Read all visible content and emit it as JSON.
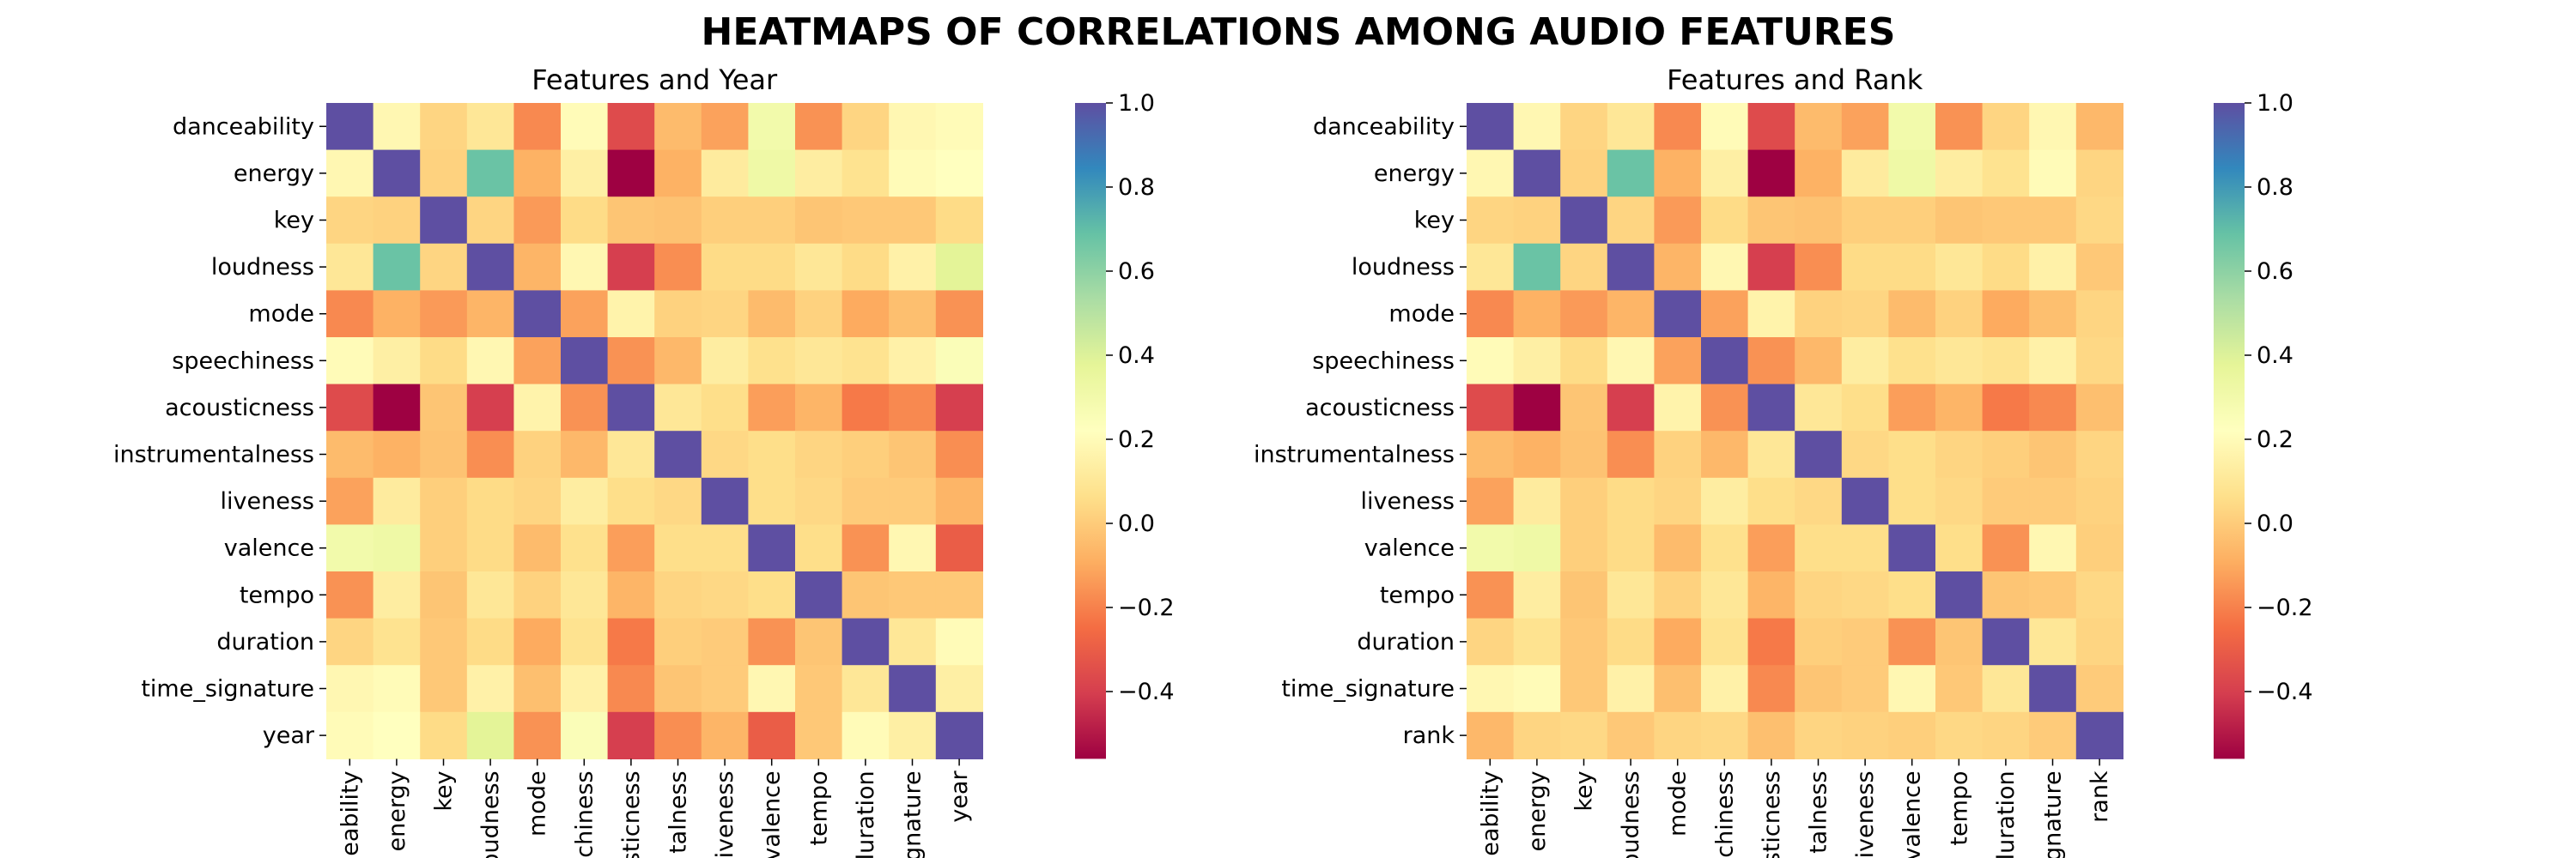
{
  "suptitle": "HEATMAPS OF CORRELATIONS AMONG AUDIO FEATURES",
  "colormap": {
    "name": "Spectral",
    "stops": [
      "#9e0142",
      "#d53e4f",
      "#f46d43",
      "#fdae61",
      "#fee08b",
      "#ffffbf",
      "#e6f598",
      "#abdda4",
      "#66c2a5",
      "#3288bd",
      "#5e4fa2"
    ]
  },
  "chart_data": [
    {
      "type": "heatmap",
      "title": "Features and Year",
      "vmin": -0.56,
      "vmax": 1.0,
      "colorbar_ticks": [
        "1.0",
        "0.8",
        "0.6",
        "0.4",
        "0.2",
        "0.0",
        "−0.2",
        "−0.4"
      ],
      "colorbar_tick_values": [
        1.0,
        0.8,
        0.6,
        0.4,
        0.2,
        0.0,
        -0.2,
        -0.4
      ],
      "row_labels": [
        "danceability",
        "energy",
        "key",
        "loudness",
        "mode",
        "speechiness",
        "acousticness",
        "instrumentalness",
        "liveness",
        "valence",
        "tempo",
        "duration",
        "time_signature",
        "year"
      ],
      "col_labels": [
        "eability",
        "energy",
        "key",
        "oudness",
        "mode",
        "chiness",
        "usticness",
        "talness",
        "iveness",
        "valence",
        "tempo",
        "luration",
        "gnature",
        "year"
      ],
      "values": [
        [
          1.0,
          0.18,
          0.03,
          0.1,
          -0.18,
          0.2,
          -0.36,
          -0.05,
          -0.12,
          0.3,
          -0.16,
          0.03,
          0.18,
          0.2
        ],
        [
          0.18,
          1.0,
          0.02,
          0.68,
          -0.08,
          0.14,
          -0.56,
          -0.08,
          0.12,
          0.32,
          0.13,
          0.08,
          0.2,
          0.22
        ],
        [
          0.03,
          0.02,
          1.0,
          0.03,
          -0.14,
          0.05,
          -0.02,
          -0.03,
          0.01,
          0.01,
          -0.02,
          -0.01,
          -0.01,
          0.05
        ],
        [
          0.1,
          0.68,
          0.03,
          1.0,
          -0.07,
          0.18,
          -0.4,
          -0.17,
          0.05,
          0.05,
          0.1,
          0.05,
          0.15,
          0.38
        ],
        [
          -0.18,
          -0.08,
          -0.14,
          -0.07,
          1.0,
          -0.12,
          0.16,
          0.02,
          0.03,
          -0.05,
          0.02,
          -0.1,
          -0.04,
          -0.16
        ],
        [
          0.2,
          0.14,
          0.05,
          0.18,
          -0.12,
          1.0,
          -0.16,
          -0.06,
          0.13,
          0.07,
          0.1,
          0.08,
          0.15,
          0.25
        ],
        [
          -0.36,
          -0.56,
          -0.02,
          -0.4,
          0.16,
          -0.16,
          1.0,
          0.1,
          0.06,
          -0.13,
          -0.07,
          -0.22,
          -0.18,
          -0.4
        ],
        [
          -0.05,
          -0.08,
          -0.03,
          -0.17,
          0.02,
          -0.06,
          0.1,
          1.0,
          0.04,
          0.06,
          0.03,
          0.01,
          -0.02,
          -0.17
        ],
        [
          -0.12,
          0.12,
          0.01,
          0.05,
          0.03,
          0.13,
          0.06,
          0.04,
          1.0,
          0.06,
          0.04,
          0.0,
          0.0,
          -0.07
        ],
        [
          0.3,
          0.32,
          0.01,
          0.05,
          -0.05,
          0.07,
          -0.13,
          0.06,
          0.06,
          1.0,
          0.06,
          -0.16,
          0.18,
          -0.3
        ],
        [
          -0.16,
          0.13,
          -0.02,
          0.1,
          0.02,
          0.1,
          -0.07,
          0.03,
          0.04,
          0.06,
          1.0,
          -0.02,
          -0.01,
          -0.01
        ],
        [
          0.03,
          0.08,
          -0.01,
          0.05,
          -0.1,
          0.08,
          -0.22,
          0.01,
          0.0,
          -0.16,
          -0.02,
          1.0,
          0.1,
          0.2
        ],
        [
          0.18,
          0.2,
          -0.01,
          0.15,
          -0.04,
          0.15,
          -0.18,
          -0.02,
          0.0,
          0.18,
          -0.01,
          0.1,
          1.0,
          0.14
        ],
        [
          0.2,
          0.22,
          0.05,
          0.38,
          -0.16,
          0.25,
          -0.4,
          -0.17,
          -0.07,
          -0.3,
          -0.01,
          0.2,
          0.14,
          1.0
        ]
      ]
    },
    {
      "type": "heatmap",
      "title": "Features and Rank",
      "vmin": -0.56,
      "vmax": 1.0,
      "colorbar_ticks": [
        "1.0",
        "0.8",
        "0.6",
        "0.4",
        "0.2",
        "0.0",
        "−0.2",
        "−0.4"
      ],
      "colorbar_tick_values": [
        1.0,
        0.8,
        0.6,
        0.4,
        0.2,
        0.0,
        -0.2,
        -0.4
      ],
      "row_labels": [
        "danceability",
        "energy",
        "key",
        "loudness",
        "mode",
        "speechiness",
        "acousticness",
        "instrumentalness",
        "liveness",
        "valence",
        "tempo",
        "duration",
        "time_signature",
        "rank"
      ],
      "col_labels": [
        "eability",
        "energy",
        "key",
        "oudness",
        "mode",
        "chiness",
        "usticness",
        "talness",
        "iveness",
        "valence",
        "tempo",
        "luration",
        "gnature",
        "rank"
      ],
      "values": [
        [
          1.0,
          0.18,
          0.03,
          0.1,
          -0.18,
          0.2,
          -0.36,
          -0.05,
          -0.12,
          0.3,
          -0.16,
          0.03,
          0.18,
          -0.06
        ],
        [
          0.18,
          1.0,
          0.02,
          0.68,
          -0.08,
          0.14,
          -0.56,
          -0.08,
          0.12,
          0.32,
          0.13,
          0.08,
          0.2,
          0.03
        ],
        [
          0.03,
          0.02,
          1.0,
          0.03,
          -0.14,
          0.05,
          -0.02,
          -0.03,
          0.01,
          0.01,
          -0.02,
          -0.01,
          -0.01,
          0.04
        ],
        [
          0.1,
          0.68,
          0.03,
          1.0,
          -0.07,
          0.18,
          -0.4,
          -0.17,
          0.05,
          0.05,
          0.1,
          0.05,
          0.15,
          -0.01
        ],
        [
          -0.18,
          -0.08,
          -0.14,
          -0.07,
          1.0,
          -0.12,
          0.16,
          0.02,
          0.03,
          -0.05,
          0.02,
          -0.1,
          -0.04,
          0.03
        ],
        [
          0.2,
          0.14,
          0.05,
          0.18,
          -0.12,
          1.0,
          -0.16,
          -0.06,
          0.13,
          0.07,
          0.1,
          0.08,
          0.15,
          0.04
        ],
        [
          -0.36,
          -0.56,
          -0.02,
          -0.4,
          0.16,
          -0.16,
          1.0,
          0.1,
          0.06,
          -0.13,
          -0.07,
          -0.22,
          -0.18,
          -0.04
        ],
        [
          -0.05,
          -0.08,
          -0.03,
          -0.17,
          0.02,
          -0.06,
          0.1,
          1.0,
          0.04,
          0.06,
          0.03,
          0.01,
          -0.02,
          0.03
        ],
        [
          -0.12,
          0.12,
          0.01,
          0.05,
          0.03,
          0.13,
          0.06,
          0.04,
          1.0,
          0.06,
          0.04,
          0.0,
          0.0,
          0.02
        ],
        [
          0.3,
          0.32,
          0.01,
          0.05,
          -0.05,
          0.07,
          -0.13,
          0.06,
          0.06,
          1.0,
          0.06,
          -0.16,
          0.18,
          0.01
        ],
        [
          -0.16,
          0.13,
          -0.02,
          0.1,
          0.02,
          0.1,
          -0.07,
          0.03,
          0.04,
          0.06,
          1.0,
          -0.02,
          -0.01,
          0.04
        ],
        [
          0.03,
          0.08,
          -0.01,
          0.05,
          -0.1,
          0.08,
          -0.22,
          0.01,
          0.0,
          -0.16,
          -0.02,
          1.0,
          0.1,
          0.03
        ],
        [
          0.18,
          0.2,
          -0.01,
          0.15,
          -0.04,
          0.15,
          -0.18,
          -0.02,
          0.0,
          0.18,
          -0.01,
          0.1,
          1.0,
          0.0
        ],
        [
          -0.06,
          0.03,
          0.04,
          -0.01,
          0.03,
          0.04,
          -0.04,
          0.03,
          0.02,
          0.01,
          0.04,
          0.03,
          0.0,
          1.0
        ]
      ]
    }
  ]
}
